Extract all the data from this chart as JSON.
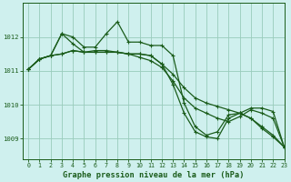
{
  "title": "Graphe pression niveau de la mer (hPa)",
  "bg_color": "#cff0ee",
  "grid_color": "#99ccbb",
  "line_color": "#1a5c1a",
  "xlim": [
    -0.5,
    23
  ],
  "ylim": [
    1008.4,
    1013.0
  ],
  "yticks": [
    1009,
    1010,
    1011,
    1012
  ],
  "xticks": [
    0,
    1,
    2,
    3,
    4,
    5,
    6,
    7,
    8,
    9,
    10,
    11,
    12,
    13,
    14,
    15,
    16,
    17,
    18,
    19,
    20,
    21,
    22,
    23
  ],
  "line1": [
    1011.05,
    1011.35,
    1011.45,
    1011.5,
    1011.6,
    1011.55,
    1011.55,
    1011.55,
    1011.55,
    1011.5,
    1011.5,
    1011.45,
    1011.2,
    1010.9,
    1010.5,
    1010.2,
    1010.05,
    1009.95,
    1009.85,
    1009.75,
    1009.9,
    1009.9,
    1009.8,
    1008.75
  ],
  "line2": [
    1011.05,
    1011.35,
    1011.45,
    1012.1,
    1011.8,
    1011.55,
    1011.6,
    1011.6,
    1011.55,
    1011.5,
    1011.4,
    1011.3,
    1011.1,
    1010.7,
    1010.2,
    1009.9,
    1009.75,
    1009.6,
    1009.5,
    1009.65,
    1009.85,
    1009.75,
    1009.6,
    1008.75
  ],
  "line3": [
    1011.05,
    1011.35,
    1011.45,
    1012.1,
    1012.0,
    1011.7,
    1011.7,
    1012.1,
    1012.45,
    1011.85,
    1011.85,
    1011.75,
    1011.75,
    1011.45,
    1010.05,
    1009.35,
    1009.1,
    1009.2,
    1009.7,
    1009.75,
    1009.6,
    1009.35,
    1009.1,
    1008.75
  ],
  "line4": [
    1011.05,
    1011.35,
    1011.45,
    1011.5,
    1011.6,
    1011.55,
    1011.55,
    1011.55,
    1011.55,
    1011.5,
    1011.5,
    1011.45,
    1011.2,
    1010.6,
    1009.75,
    1009.2,
    1009.05,
    1009.0,
    1009.6,
    1009.75,
    1009.6,
    1009.3,
    1009.05,
    1008.75
  ]
}
